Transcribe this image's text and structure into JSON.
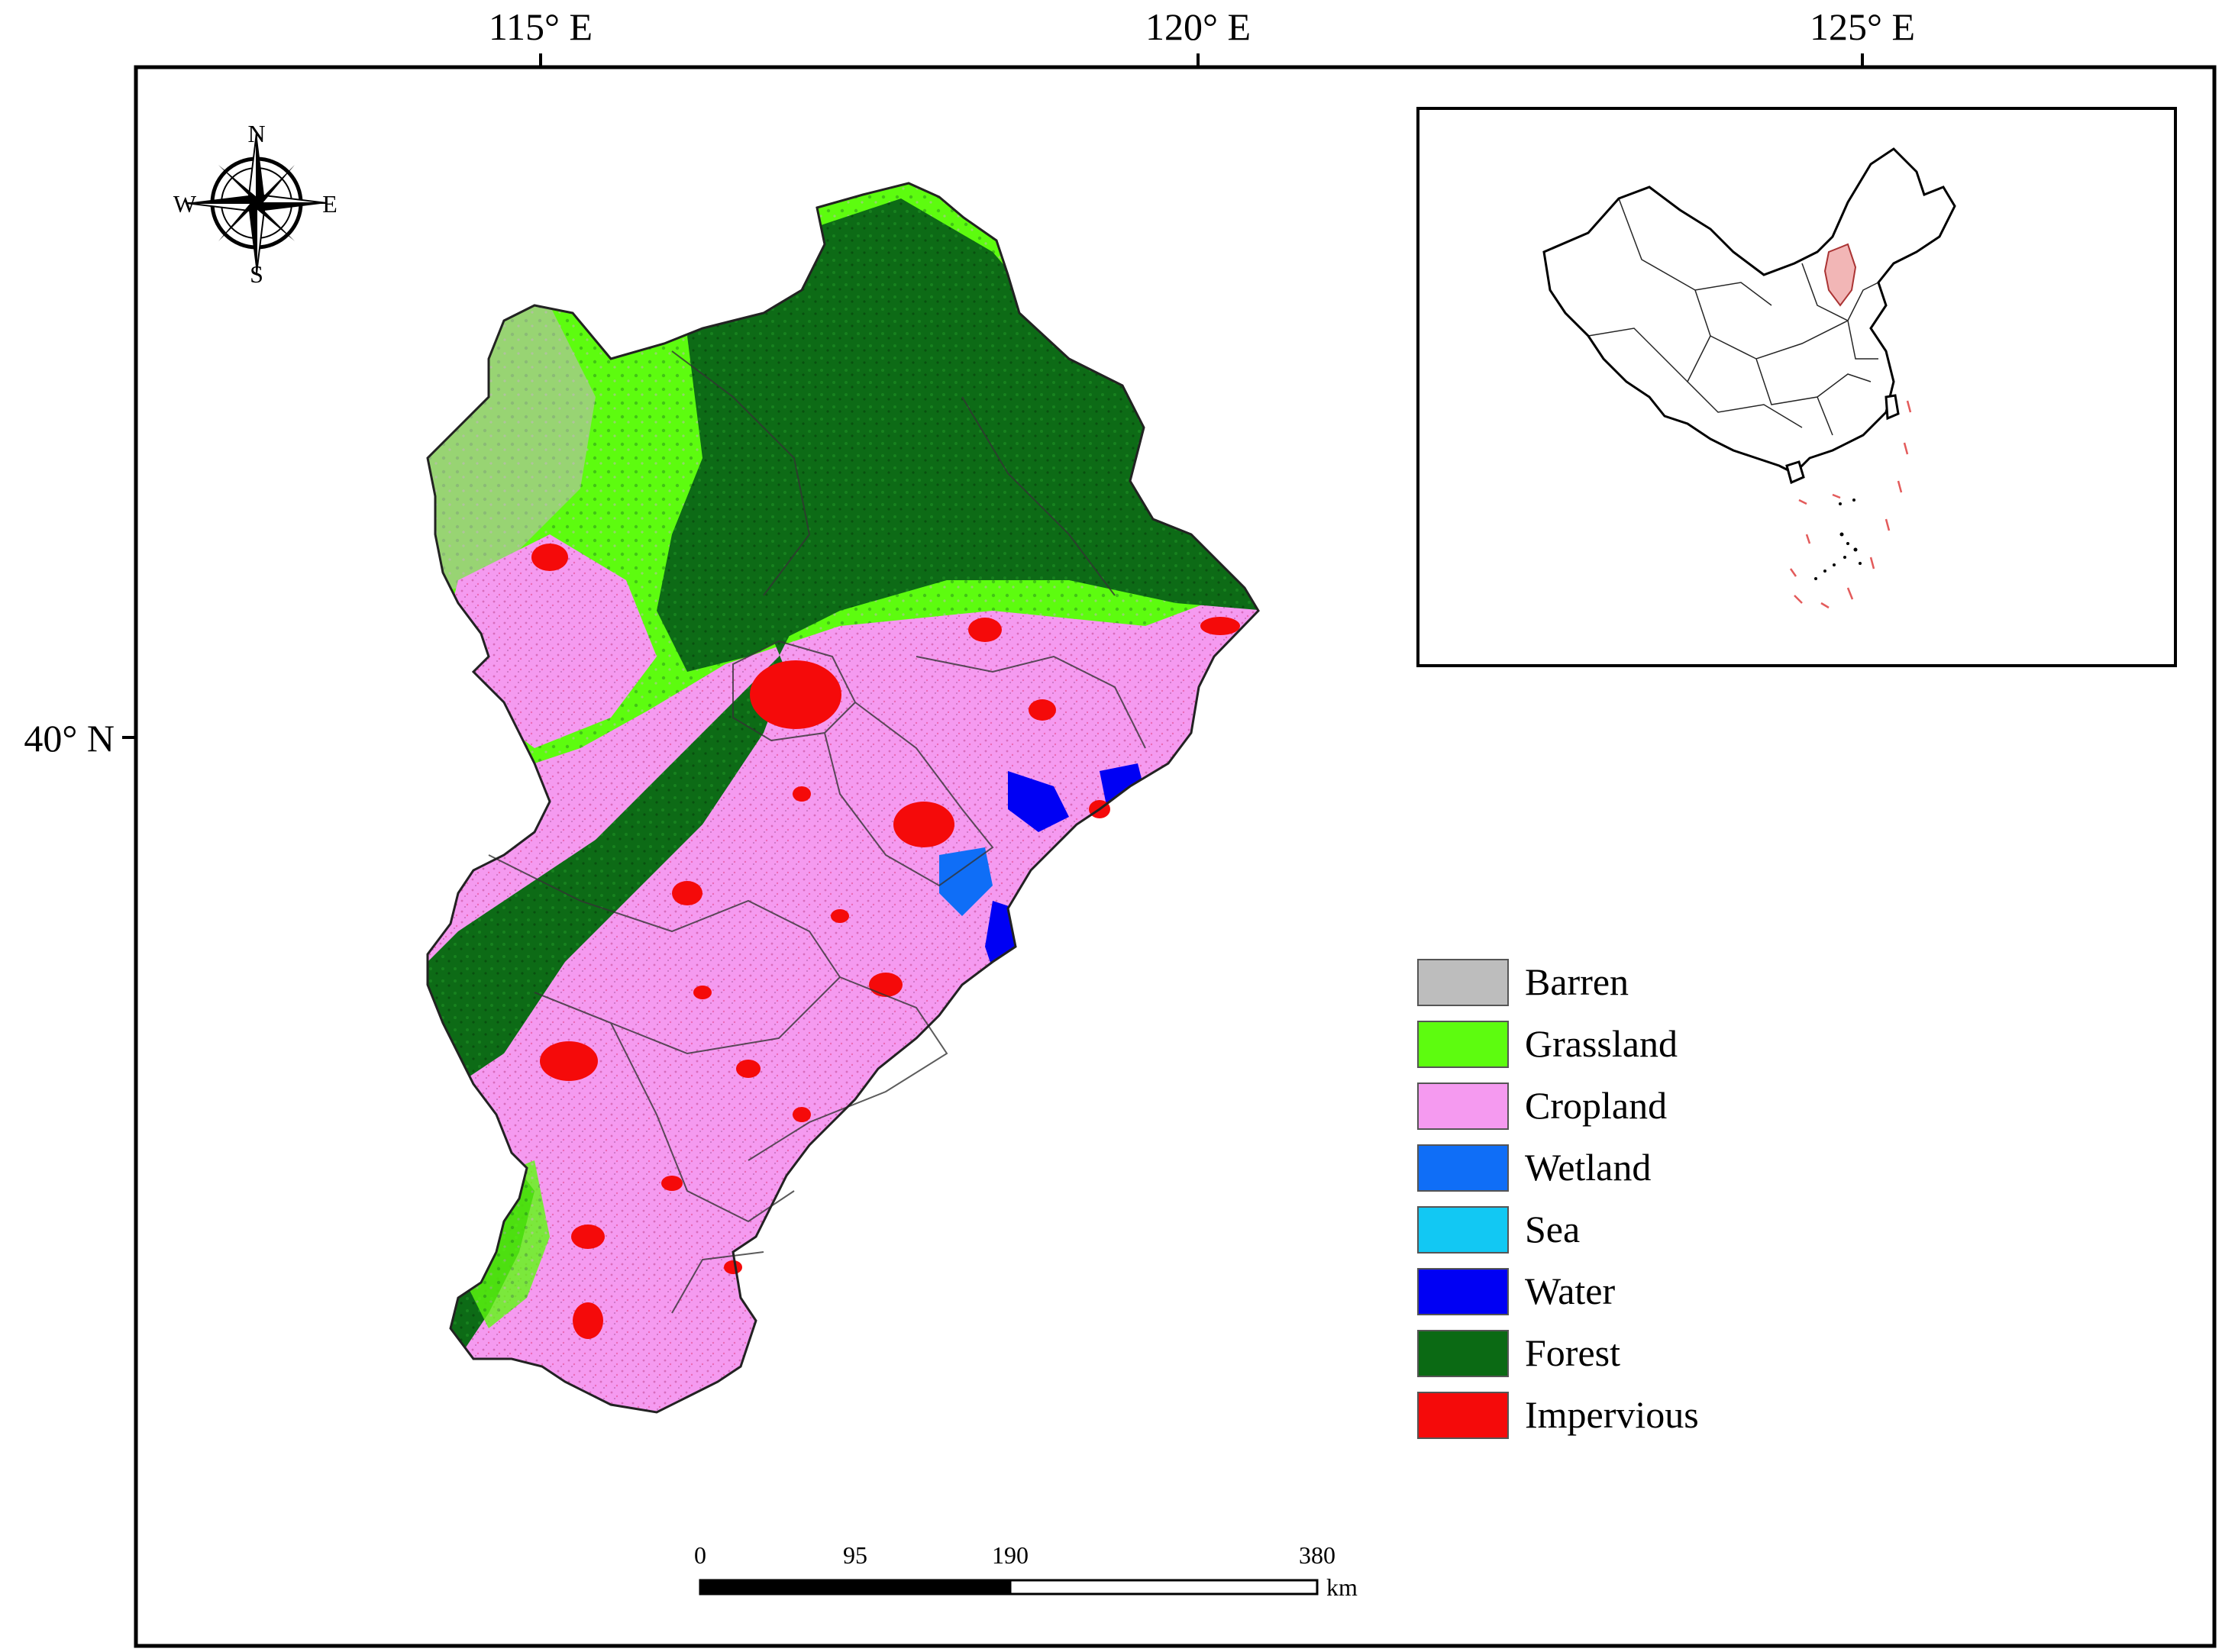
{
  "map": {
    "graticule": {
      "lon_labels": [
        "115° E",
        "120° E",
        "125° E"
      ],
      "lat_labels": [
        "40° N"
      ]
    },
    "north_arrow": {
      "n": "N",
      "s": "S",
      "e": "E",
      "w": "W"
    },
    "legend": [
      {
        "label": "Barren",
        "color": "#bdbdbd"
      },
      {
        "label": "Grassland",
        "color": "#5dfc0f"
      },
      {
        "label": "Cropland",
        "color": "#f59af0"
      },
      {
        "label": "Wetland",
        "color": "#0f6ef7"
      },
      {
        "label": "Sea",
        "color": "#12c8f3"
      },
      {
        "label": "Water",
        "color": "#0000f4"
      },
      {
        "label": "Forest",
        "color": "#0b6a14"
      },
      {
        "label": "Impervious",
        "color": "#f50a0a"
      }
    ],
    "scale_bar": {
      "ticks": [
        "0",
        "95",
        "190",
        "380"
      ],
      "unit": "km"
    },
    "inset": {
      "highlight_color": "#f2b6b6"
    }
  }
}
